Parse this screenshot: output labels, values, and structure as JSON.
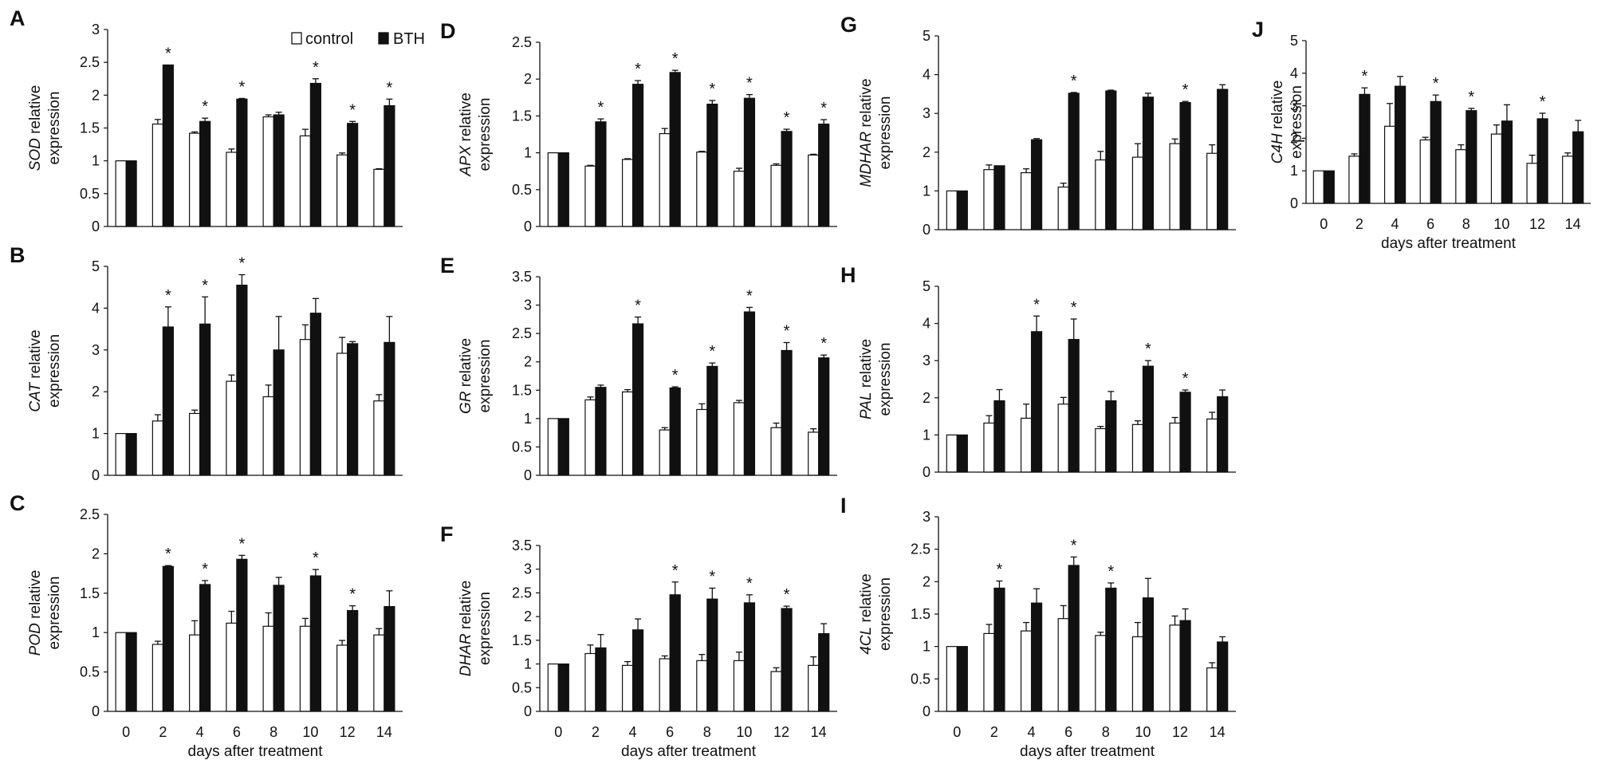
{
  "figure": {
    "legend": {
      "control": "control",
      "bth": "BTH"
    },
    "star": "*"
  },
  "chart_data": [
    {
      "panel": "A",
      "type": "bar",
      "gene": "SOD",
      "ylabel_rest": "relative",
      "ylabel2": "expression",
      "ylim": [
        0,
        3
      ],
      "ystep": 0.5,
      "yticks": [
        "0",
        "0.5",
        "1",
        "1.5",
        "2",
        "2.5",
        "3"
      ],
      "categories": [
        "0",
        "2",
        "4",
        "6",
        "8",
        "10",
        "12",
        "14"
      ],
      "xlabel": "days after treatment",
      "showX": false,
      "showXlabel": false,
      "legend": true,
      "series": [
        {
          "name": "control",
          "values": [
            1,
            1.56,
            1.42,
            1.13,
            1.67,
            1.38,
            1.09,
            0.87
          ],
          "err": [
            0,
            0.07,
            0.02,
            0.05,
            0.03,
            0.1,
            0.03,
            0.01
          ]
        },
        {
          "name": "BTH",
          "values": [
            1,
            2.46,
            1.6,
            1.94,
            1.7,
            2.18,
            1.57,
            1.84
          ],
          "err": [
            0,
            0,
            0.05,
            0.01,
            0.04,
            0.07,
            0.03,
            0.1
          ]
        }
      ],
      "sig": [
        false,
        true,
        true,
        true,
        false,
        true,
        true,
        true
      ]
    },
    {
      "panel": "B",
      "type": "bar",
      "gene": "CAT",
      "ylabel_rest": "relative",
      "ylabel2": "expression",
      "ylim": [
        0,
        5
      ],
      "ystep": 1,
      "yticks": [
        "0",
        "1",
        "2",
        "3",
        "4",
        "5"
      ],
      "categories": [
        "0",
        "2",
        "4",
        "6",
        "8",
        "10",
        "12",
        "14"
      ],
      "xlabel": "days after treatment",
      "showX": false,
      "showXlabel": false,
      "legend": false,
      "series": [
        {
          "name": "control",
          "values": [
            1,
            1.3,
            1.48,
            2.25,
            1.88,
            3.25,
            2.92,
            1.78
          ],
          "err": [
            0,
            0.15,
            0.08,
            0.15,
            0.28,
            0.35,
            0.38,
            0.15
          ]
        },
        {
          "name": "BTH",
          "values": [
            1,
            3.55,
            3.62,
            4.55,
            3.0,
            3.88,
            3.15,
            3.18
          ],
          "err": [
            0,
            0.48,
            0.65,
            0.25,
            0.8,
            0.35,
            0.05,
            0.62
          ]
        }
      ],
      "sig": [
        false,
        true,
        true,
        true,
        false,
        false,
        false,
        false
      ]
    },
    {
      "panel": "C",
      "type": "bar",
      "gene": "POD",
      "ylabel_rest": "relative",
      "ylabel2": "expression",
      "ylim": [
        0,
        2.5
      ],
      "ystep": 0.5,
      "yticks": [
        "0",
        "0.5",
        "1",
        "1.5",
        "2",
        "2.5"
      ],
      "categories": [
        "0",
        "2",
        "4",
        "6",
        "8",
        "10",
        "12",
        "14"
      ],
      "xlabel": "days after treatment",
      "showX": true,
      "showXlabel": true,
      "legend": false,
      "series": [
        {
          "name": "control",
          "values": [
            1,
            0.85,
            0.97,
            1.12,
            1.08,
            1.08,
            0.84,
            0.97
          ],
          "err": [
            0,
            0.04,
            0.18,
            0.15,
            0.17,
            0.1,
            0.06,
            0.08
          ]
        },
        {
          "name": "BTH",
          "values": [
            1,
            1.84,
            1.61,
            1.93,
            1.6,
            1.72,
            1.28,
            1.33
          ],
          "err": [
            0,
            0.01,
            0.05,
            0.05,
            0.1,
            0.08,
            0.06,
            0.2
          ]
        }
      ],
      "sig": [
        false,
        true,
        true,
        true,
        false,
        true,
        true,
        false
      ]
    },
    {
      "panel": "D",
      "type": "bar",
      "gene": "APX",
      "ylabel_rest": "relative",
      "ylabel2": "expression",
      "ylim": [
        0,
        2.5
      ],
      "ystep": 0.5,
      "yticks": [
        "0",
        "0.5",
        "1",
        "1.5",
        "2",
        "2.5"
      ],
      "categories": [
        "0",
        "2",
        "4",
        "6",
        "8",
        "10",
        "12",
        "14"
      ],
      "xlabel": "days after treatment",
      "showX": false,
      "showXlabel": false,
      "legend": false,
      "series": [
        {
          "name": "control",
          "values": [
            1,
            0.82,
            0.91,
            1.26,
            1.01,
            0.75,
            0.83,
            0.97
          ],
          "err": [
            0,
            0.01,
            0.01,
            0.07,
            0.01,
            0.04,
            0.02,
            0.01
          ]
        },
        {
          "name": "BTH",
          "values": [
            1,
            1.42,
            1.93,
            2.09,
            1.66,
            1.74,
            1.29,
            1.39
          ],
          "err": [
            0,
            0.04,
            0.05,
            0.03,
            0.05,
            0.05,
            0.03,
            0.06
          ]
        }
      ],
      "sig": [
        false,
        true,
        true,
        true,
        true,
        true,
        true,
        true
      ]
    },
    {
      "panel": "E",
      "type": "bar",
      "gene": "GR",
      "ylabel_rest": "relative",
      "ylabel2": "expression",
      "ylim": [
        0,
        3.5
      ],
      "ystep": 0.5,
      "yticks": [
        "0",
        "0.5",
        "1",
        "1.5",
        "2",
        "2.5",
        "3",
        "3.5"
      ],
      "categories": [
        "0",
        "2",
        "4",
        "6",
        "8",
        "10",
        "12",
        "14"
      ],
      "xlabel": "days after treatment",
      "showX": false,
      "showXlabel": false,
      "legend": false,
      "series": [
        {
          "name": "control",
          "values": [
            1,
            1.33,
            1.47,
            0.8,
            1.16,
            1.28,
            0.84,
            0.76
          ],
          "err": [
            0,
            0.05,
            0.04,
            0.04,
            0.1,
            0.04,
            0.08,
            0.06
          ]
        },
        {
          "name": "BTH",
          "values": [
            1,
            1.55,
            2.67,
            1.54,
            1.92,
            2.88,
            2.2,
            2.07
          ],
          "err": [
            0,
            0.04,
            0.12,
            0.02,
            0.06,
            0.08,
            0.14,
            0.05
          ]
        }
      ],
      "sig": [
        false,
        false,
        true,
        true,
        true,
        true,
        true,
        true
      ]
    },
    {
      "panel": "F",
      "type": "bar",
      "gene": "DHAR",
      "ylabel_rest": "relative",
      "ylabel2": "expression",
      "ylim": [
        0,
        3.5
      ],
      "ystep": 0.5,
      "yticks": [
        "0",
        "0.5",
        "1",
        "1.5",
        "2",
        "2.5",
        "3",
        "3.5"
      ],
      "categories": [
        "0",
        "2",
        "4",
        "6",
        "8",
        "10",
        "12",
        "14"
      ],
      "xlabel": "days after treatment",
      "showX": true,
      "showXlabel": true,
      "legend": false,
      "series": [
        {
          "name": "control",
          "values": [
            1,
            1.22,
            0.97,
            1.11,
            1.07,
            1.07,
            0.84,
            0.97
          ],
          "err": [
            0,
            0.18,
            0.08,
            0.06,
            0.13,
            0.18,
            0.08,
            0.18
          ]
        },
        {
          "name": "BTH",
          "values": [
            1,
            1.34,
            1.72,
            2.46,
            2.37,
            2.29,
            2.17,
            1.64
          ],
          "err": [
            0,
            0.28,
            0.23,
            0.27,
            0.23,
            0.17,
            0.05,
            0.21
          ]
        }
      ],
      "sig": [
        false,
        false,
        false,
        true,
        true,
        true,
        true,
        false
      ]
    },
    {
      "panel": "G",
      "type": "bar",
      "gene": "MDHAR",
      "ylabel_rest": "relative",
      "ylabel2": "expression",
      "ylim": [
        0,
        5
      ],
      "ystep": 1,
      "yticks": [
        "0",
        "1",
        "2",
        "3",
        "4",
        "5"
      ],
      "categories": [
        "0",
        "2",
        "4",
        "6",
        "8",
        "10",
        "12",
        "14"
      ],
      "xlabel": "days after treatment",
      "showX": false,
      "showXlabel": false,
      "legend": false,
      "series": [
        {
          "name": "control",
          "values": [
            1,
            1.55,
            1.47,
            1.1,
            1.8,
            1.87,
            2.22,
            1.97
          ],
          "err": [
            0,
            0.12,
            0.1,
            0.1,
            0.22,
            0.35,
            0.12,
            0.22
          ]
        },
        {
          "name": "BTH",
          "values": [
            1,
            1.65,
            2.32,
            3.52,
            3.58,
            3.42,
            3.28,
            3.62
          ],
          "err": [
            0,
            0,
            0.03,
            0.02,
            0.02,
            0.1,
            0.03,
            0.12
          ]
        }
      ],
      "sig": [
        false,
        false,
        false,
        true,
        false,
        false,
        true,
        false
      ]
    },
    {
      "panel": "H",
      "type": "bar",
      "gene": "PAL",
      "ylabel_rest": "relative",
      "ylabel2": "expression",
      "ylim": [
        0,
        5
      ],
      "ystep": 1,
      "yticks": [
        "0",
        "1",
        "2",
        "3",
        "4",
        "5"
      ],
      "categories": [
        "0",
        "2",
        "4",
        "6",
        "8",
        "10",
        "12",
        "14"
      ],
      "xlabel": "days after treatment",
      "showX": false,
      "showXlabel": false,
      "legend": false,
      "series": [
        {
          "name": "control",
          "values": [
            1,
            1.32,
            1.45,
            1.83,
            1.17,
            1.28,
            1.32,
            1.43
          ],
          "err": [
            0,
            0.2,
            0.38,
            0.18,
            0.06,
            0.1,
            0.15,
            0.18
          ]
        },
        {
          "name": "BTH",
          "values": [
            1,
            1.92,
            3.78,
            3.57,
            1.92,
            2.85,
            2.15,
            2.03
          ],
          "err": [
            0,
            0.3,
            0.42,
            0.55,
            0.25,
            0.15,
            0.06,
            0.18
          ]
        }
      ],
      "sig": [
        false,
        false,
        true,
        true,
        false,
        true,
        true,
        false
      ]
    },
    {
      "panel": "I",
      "type": "bar",
      "gene": "4CL",
      "ylabel_rest": "relative",
      "ylabel2": "expression",
      "ylim": [
        0,
        3
      ],
      "ystep": 0.5,
      "yticks": [
        "0",
        "0.5",
        "1",
        "1.5",
        "2",
        "2.5",
        "3"
      ],
      "categories": [
        "0",
        "2",
        "4",
        "6",
        "8",
        "10",
        "12",
        "14"
      ],
      "xlabel": "days after treatment",
      "showX": true,
      "showXlabel": true,
      "legend": false,
      "series": [
        {
          "name": "control",
          "values": [
            1,
            1.2,
            1.24,
            1.43,
            1.17,
            1.15,
            1.33,
            0.67
          ],
          "err": [
            0,
            0.14,
            0.13,
            0.2,
            0.05,
            0.22,
            0.14,
            0.08
          ]
        },
        {
          "name": "BTH",
          "values": [
            1,
            1.9,
            1.67,
            2.25,
            1.9,
            1.75,
            1.4,
            1.07
          ],
          "err": [
            0,
            0.11,
            0.22,
            0.13,
            0.08,
            0.3,
            0.18,
            0.08
          ]
        }
      ],
      "sig": [
        false,
        true,
        false,
        true,
        true,
        false,
        false,
        false
      ]
    },
    {
      "panel": "J",
      "type": "bar",
      "gene": "C4H",
      "ylabel_rest": "relative",
      "ylabel2": "expression",
      "ylim": [
        0,
        5
      ],
      "ystep": 1,
      "yticks": [
        "0",
        "1",
        "2",
        "3",
        "4",
        "5"
      ],
      "categories": [
        "0",
        "2",
        "4",
        "6",
        "8",
        "10",
        "12",
        "14"
      ],
      "xlabel": "days after treatment",
      "showX": true,
      "showXlabel": true,
      "legend": false,
      "series": [
        {
          "name": "control",
          "values": [
            1,
            1.45,
            2.37,
            1.95,
            1.65,
            2.13,
            1.23,
            1.45
          ],
          "err": [
            0,
            0.07,
            0.7,
            0.08,
            0.15,
            0.28,
            0.25,
            0.1
          ]
        },
        {
          "name": "BTH",
          "values": [
            1,
            3.35,
            3.6,
            3.13,
            2.85,
            2.53,
            2.6,
            2.2
          ],
          "err": [
            0,
            0.2,
            0.3,
            0.2,
            0.07,
            0.5,
            0.17,
            0.35
          ]
        }
      ],
      "sig": [
        false,
        true,
        false,
        true,
        true,
        false,
        true,
        false
      ]
    }
  ]
}
